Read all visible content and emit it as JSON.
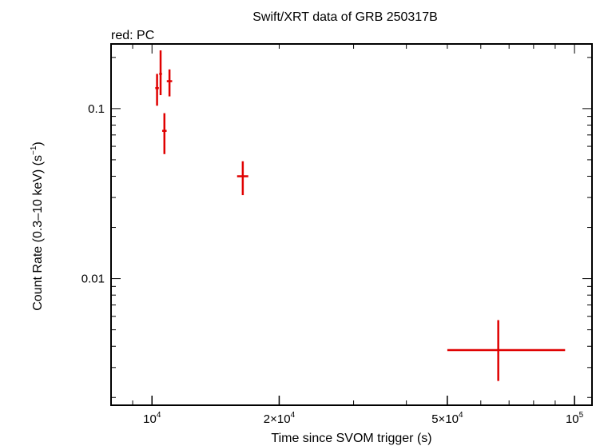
{
  "chart_data": {
    "type": "scatter",
    "title": "Swift/XRT data of GRB 250317B",
    "subtitle": "red: PC",
    "xlabel": "Time since SVOM trigger (s)",
    "ylabel_main": "Count Rate (0.3–10 keV) (s",
    "ylabel_sup": "−1",
    "ylabel_close": ")",
    "xscale": "log",
    "yscale": "log",
    "xlim": [
      8000,
      110000
    ],
    "ylim": [
      0.0018,
      0.24
    ],
    "x_ticks": [
      {
        "value": 10000,
        "base": "10",
        "exp": "4"
      },
      {
        "value": 20000,
        "base": "2×10",
        "exp": "4"
      },
      {
        "value": 50000,
        "base": "5×10",
        "exp": "4"
      },
      {
        "value": 100000,
        "base": "10",
        "exp": "5"
      }
    ],
    "y_ticks": [
      {
        "value": 0.1,
        "label": "0.1"
      },
      {
        "value": 0.01,
        "label": "0.01"
      }
    ],
    "series": [
      {
        "color": "#e00000",
        "points": [
          {
            "x": 10280,
            "x_lo": 10180,
            "x_hi": 10380,
            "y": 0.132,
            "y_lo": 0.104,
            "y_hi": 0.16
          },
          {
            "x": 10480,
            "x_lo": 10400,
            "x_hi": 10560,
            "y": 0.16,
            "y_lo": 0.12,
            "y_hi": 0.22
          },
          {
            "x": 10700,
            "x_lo": 10570,
            "x_hi": 10830,
            "y": 0.074,
            "y_lo": 0.054,
            "y_hi": 0.094
          },
          {
            "x": 11000,
            "x_lo": 10840,
            "x_hi": 11160,
            "y": 0.145,
            "y_lo": 0.118,
            "y_hi": 0.17
          },
          {
            "x": 16400,
            "x_lo": 15900,
            "x_hi": 16900,
            "y": 0.04,
            "y_lo": 0.031,
            "y_hi": 0.049
          },
          {
            "x": 66000,
            "x_lo": 50000,
            "x_hi": 95000,
            "y": 0.0038,
            "y_lo": 0.0025,
            "y_hi": 0.0057
          }
        ]
      }
    ]
  }
}
